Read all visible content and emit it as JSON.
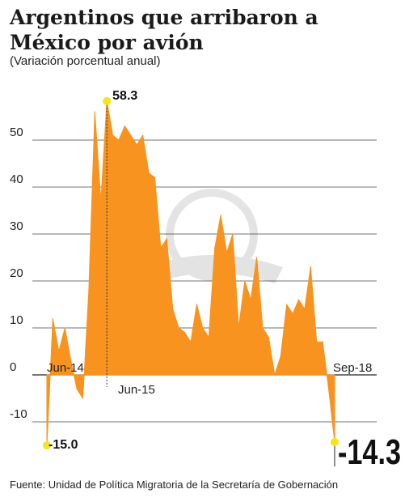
{
  "title": "Argentinos que arribaron a México por avión",
  "subtitle": "(Variación porcentual anual)",
  "source": "Fuente: Unidad de Política Migratoria de la Secretaría de Gobernación",
  "colors": {
    "fill": "#f7931e",
    "highlight": "#f5e61a",
    "grid": "#444444"
  },
  "chart_data": {
    "type": "area",
    "title": "Argentinos que arribaron a México por avión",
    "subtitle": "(Variación porcentual anual)",
    "ylim": [
      -15,
      60
    ],
    "yticks": [
      -10,
      0,
      10,
      20,
      30,
      40,
      50
    ],
    "grid": true,
    "x_labels": [
      "Jun-14",
      "Jun-15",
      "Sep-18"
    ],
    "values": [
      -15.0,
      12,
      5,
      10,
      3,
      -3,
      -5,
      18,
      56,
      37,
      58.3,
      51,
      50,
      53,
      51,
      49,
      51,
      43,
      42,
      27,
      29,
      14,
      10,
      9,
      7,
      15,
      10,
      8,
      27,
      34,
      26,
      30,
      10,
      20,
      16,
      25,
      10,
      8,
      0,
      4,
      15,
      13,
      16,
      14,
      23,
      7,
      7,
      -3,
      -14.3
    ],
    "annotations": {
      "max": "58.3",
      "start": "-15.0",
      "end": "-14.3"
    }
  }
}
